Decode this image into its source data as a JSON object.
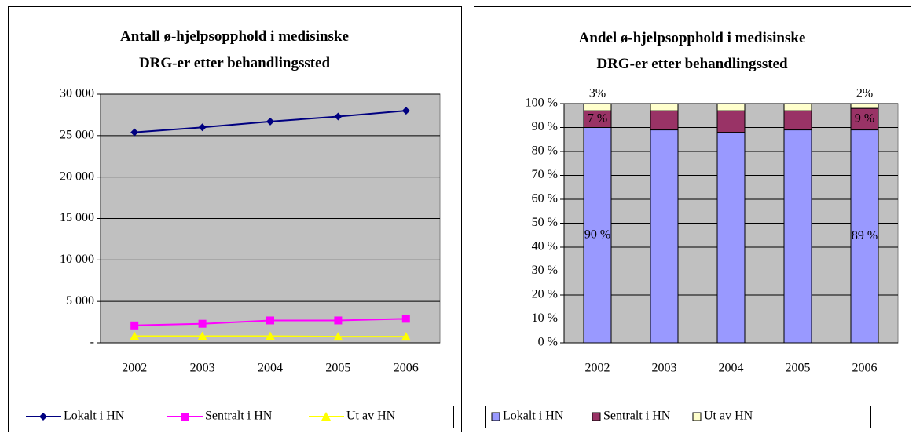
{
  "chart_data": [
    {
      "type": "line",
      "title": "Antall ø-hjelpsopphold i medisinske DRG-er etter behandlingssted",
      "categories": [
        "2002",
        "2003",
        "2004",
        "2005",
        "2006"
      ],
      "series": [
        {
          "name": "Lokalt i HN",
          "color": "#000080",
          "marker": "diamond",
          "values": [
            25400,
            26000,
            26700,
            27300,
            28000
          ]
        },
        {
          "name": "Sentralt i HN",
          "color": "#ff00ff",
          "marker": "square",
          "values": [
            2100,
            2300,
            2700,
            2700,
            2900
          ]
        },
        {
          "name": "Ut av HN",
          "color": "#ffff00",
          "marker": "triangle",
          "values": [
            800,
            800,
            800,
            750,
            750
          ]
        }
      ],
      "ylim": [
        0,
        30000
      ],
      "yticks": [
        {
          "value": 0,
          "label": "-"
        },
        {
          "value": 5000,
          "label": "5 000"
        },
        {
          "value": 10000,
          "label": "10 000"
        },
        {
          "value": 15000,
          "label": "15 000"
        },
        {
          "value": 20000,
          "label": "20 000"
        },
        {
          "value": 25000,
          "label": "25 000"
        },
        {
          "value": 30000,
          "label": "30 000"
        }
      ],
      "grid": true,
      "legend": "bottom"
    },
    {
      "type": "stacked_bar",
      "title": "Andel ø-hjelpsopphold i medisinske DRG-er etter behandlingssted",
      "categories": [
        "2002",
        "2003",
        "2004",
        "2005",
        "2006"
      ],
      "series": [
        {
          "name": "Lokalt i HN",
          "color": "#9999ff",
          "values": [
            90,
            89,
            88,
            89,
            89
          ],
          "value_labels": [
            "90 %",
            null,
            null,
            null,
            "89 %"
          ]
        },
        {
          "name": "Sentralt i HN",
          "color": "#993366",
          "values": [
            7,
            8,
            9,
            8,
            9
          ],
          "value_labels": [
            "7 %",
            null,
            null,
            null,
            "9 %"
          ]
        },
        {
          "name": "Ut av HN",
          "color": "#ffffcc",
          "values": [
            3,
            3,
            3,
            3,
            2
          ],
          "value_labels": [
            "3%",
            null,
            null,
            null,
            "2%"
          ]
        }
      ],
      "ylim": [
        0,
        100
      ],
      "yticks": [
        {
          "value": 0,
          "label": "0 %"
        },
        {
          "value": 10,
          "label": "10 %"
        },
        {
          "value": 20,
          "label": "20 %"
        },
        {
          "value": 30,
          "label": "30 %"
        },
        {
          "value": 40,
          "label": "40 %"
        },
        {
          "value": 50,
          "label": "50 %"
        },
        {
          "value": 60,
          "label": "60 %"
        },
        {
          "value": 70,
          "label": "70 %"
        },
        {
          "value": 80,
          "label": "80 %"
        },
        {
          "value": 90,
          "label": "90 %"
        },
        {
          "value": 100,
          "label": "100 %"
        }
      ],
      "grid": true,
      "legend": "bottom"
    }
  ]
}
